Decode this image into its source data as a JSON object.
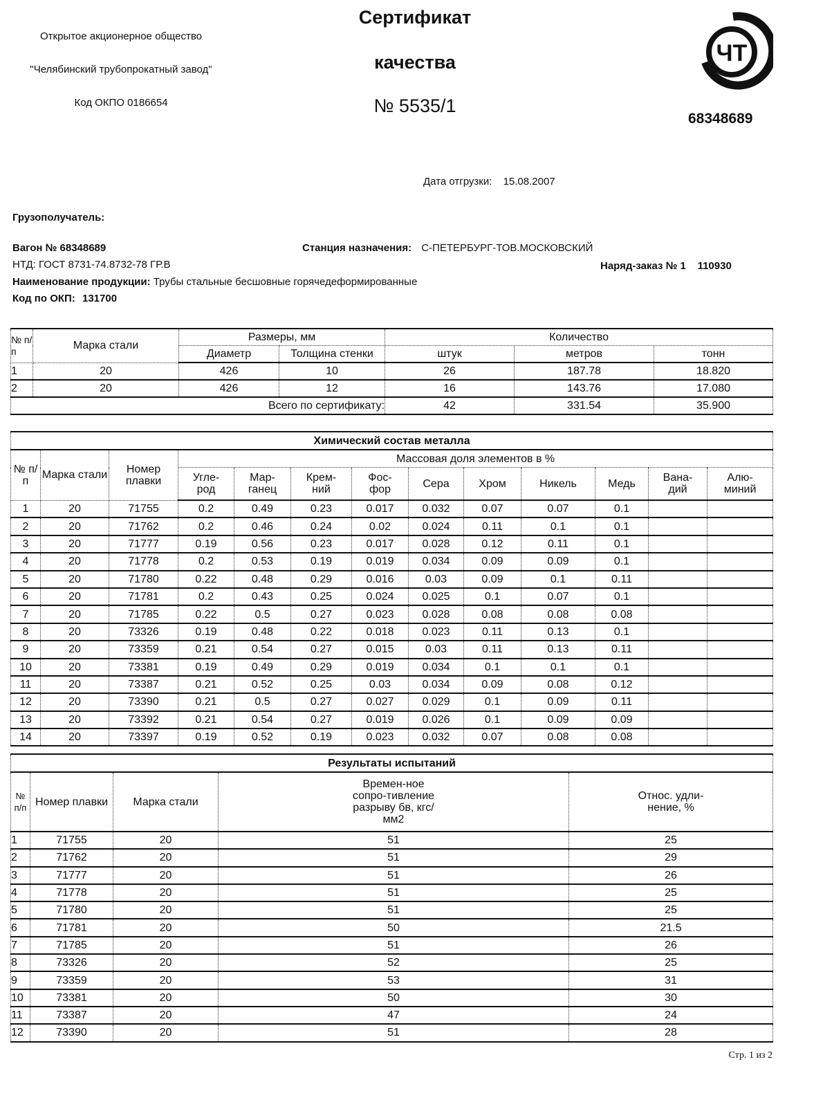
{
  "header": {
    "org_line1": "Открытое акционерное общество",
    "org_line2": "\"Челябинский трубопрокатный завод\"",
    "okpo": "Код ОКПО 0186654",
    "title1": "Сертификат",
    "title2": "качества",
    "number": "№ 5535/1",
    "logo_text": "ЧТ",
    "code_right": "68348689"
  },
  "shipment": {
    "date_label": "Дата отгрузки:",
    "date_value": "15.08.2007",
    "consignee_label": "Грузополучатель:",
    "wagon": "Вагон № 68348689",
    "station_label": "Станция назначения:",
    "station_value": "С-ПЕТЕРБУРГ-ТОВ.МОСКОВСКИЙ",
    "ntd": "НТД: ГОСТ 8731-74.8732-78 ГР.В",
    "order": "Наряд-заказ № 1    110930",
    "product_label": "Наименование продукции:",
    "product_value": "Трубы стальные бесшовные горячедеформированные",
    "okp_label": "Код по ОКП:",
    "okp_value": "131700"
  },
  "quantity_table": {
    "h_num": "№ п/п",
    "h_grade": "Марка стали",
    "h_sizes": "Размеры, мм",
    "h_diameter": "Диаметр",
    "h_wall": "Толщина стенки",
    "h_qty": "Количество",
    "h_pcs": "штук",
    "h_m": "метров",
    "h_t": "тонн",
    "rows": [
      [
        "1",
        "20",
        "426",
        "10",
        "26",
        "187.78",
        "18.820"
      ],
      [
        "2",
        "20",
        "426",
        "12",
        "16",
        "143.76",
        "17.080"
      ]
    ],
    "total_label": "Всего по сертификату:",
    "total": [
      "42",
      "331.54",
      "35.900"
    ]
  },
  "chem_table": {
    "title": "Химический состав металла",
    "subtitle": "Массовая доля элементов в %",
    "headers": [
      "№ п/п",
      "Марка стали",
      "Номер плавки",
      "Угле-род",
      "Мар-ганец",
      "Крем-ний",
      "Фос-фор",
      "Сера",
      "Хром",
      "Никель",
      "Медь",
      "Вана-дий",
      "Алю-миний"
    ],
    "rows": [
      [
        "1",
        "20",
        "71755",
        "0.2",
        "0.49",
        "0.23",
        "0.017",
        "0.032",
        "0.07",
        "0.07",
        "0.1",
        "",
        ""
      ],
      [
        "2",
        "20",
        "71762",
        "0.2",
        "0.46",
        "0.24",
        "0.02",
        "0.024",
        "0.11",
        "0.1",
        "0.1",
        "",
        ""
      ],
      [
        "3",
        "20",
        "71777",
        "0.19",
        "0.56",
        "0.23",
        "0.017",
        "0.028",
        "0.12",
        "0.11",
        "0.1",
        "",
        ""
      ],
      [
        "4",
        "20",
        "71778",
        "0.2",
        "0.53",
        "0.19",
        "0.019",
        "0.034",
        "0.09",
        "0.09",
        "0.1",
        "",
        ""
      ],
      [
        "5",
        "20",
        "71780",
        "0.22",
        "0.48",
        "0.29",
        "0.016",
        "0.03",
        "0.09",
        "0.1",
        "0.11",
        "",
        ""
      ],
      [
        "6",
        "20",
        "71781",
        "0.2",
        "0.43",
        "0.25",
        "0.024",
        "0.025",
        "0.1",
        "0.07",
        "0.1",
        "",
        ""
      ],
      [
        "7",
        "20",
        "71785",
        "0.22",
        "0.5",
        "0.27",
        "0.023",
        "0.028",
        "0.08",
        "0.08",
        "0.08",
        "",
        ""
      ],
      [
        "8",
        "20",
        "73326",
        "0.19",
        "0.48",
        "0.22",
        "0.018",
        "0.023",
        "0.11",
        "0.13",
        "0.1",
        "",
        ""
      ],
      [
        "9",
        "20",
        "73359",
        "0.21",
        "0.54",
        "0.27",
        "0.015",
        "0.03",
        "0.11",
        "0.13",
        "0.11",
        "",
        ""
      ],
      [
        "10",
        "20",
        "73381",
        "0.19",
        "0.49",
        "0.29",
        "0.019",
        "0.034",
        "0.1",
        "0.1",
        "0.1",
        "",
        ""
      ],
      [
        "11",
        "20",
        "73387",
        "0.21",
        "0.52",
        "0.25",
        "0.03",
        "0.034",
        "0.09",
        "0.08",
        "0.12",
        "",
        ""
      ],
      [
        "12",
        "20",
        "73390",
        "0.21",
        "0.5",
        "0.27",
        "0.027",
        "0.029",
        "0.1",
        "0.09",
        "0.11",
        "",
        ""
      ],
      [
        "13",
        "20",
        "73392",
        "0.21",
        "0.54",
        "0.27",
        "0.019",
        "0.026",
        "0.1",
        "0.09",
        "0.09",
        "",
        ""
      ],
      [
        "14",
        "20",
        "73397",
        "0.19",
        "0.52",
        "0.19",
        "0.023",
        "0.032",
        "0.07",
        "0.08",
        "0.08",
        "",
        ""
      ]
    ]
  },
  "test_table": {
    "title": "Результаты испытаний",
    "headers": [
      "№ п/п",
      "Номер плавки",
      "Марка стали",
      "Времен-ное сопро-тивление разрыву бв, кгс/мм2",
      "Относ. удли-нение, %"
    ],
    "rows": [
      [
        "1",
        "71755",
        "20",
        "51",
        "25"
      ],
      [
        "2",
        "71762",
        "20",
        "51",
        "29"
      ],
      [
        "3",
        "71777",
        "20",
        "51",
        "26"
      ],
      [
        "4",
        "71778",
        "20",
        "51",
        "25"
      ],
      [
        "5",
        "71780",
        "20",
        "51",
        "25"
      ],
      [
        "6",
        "71781",
        "20",
        "50",
        "21.5"
      ],
      [
        "7",
        "71785",
        "20",
        "51",
        "26"
      ],
      [
        "8",
        "73326",
        "20",
        "52",
        "25"
      ],
      [
        "9",
        "73359",
        "20",
        "53",
        "31"
      ],
      [
        "10",
        "73381",
        "20",
        "50",
        "30"
      ],
      [
        "11",
        "73387",
        "20",
        "47",
        "24"
      ],
      [
        "12",
        "73390",
        "20",
        "51",
        "28"
      ]
    ]
  },
  "footer": {
    "page": "Стр. 1 из 2"
  }
}
